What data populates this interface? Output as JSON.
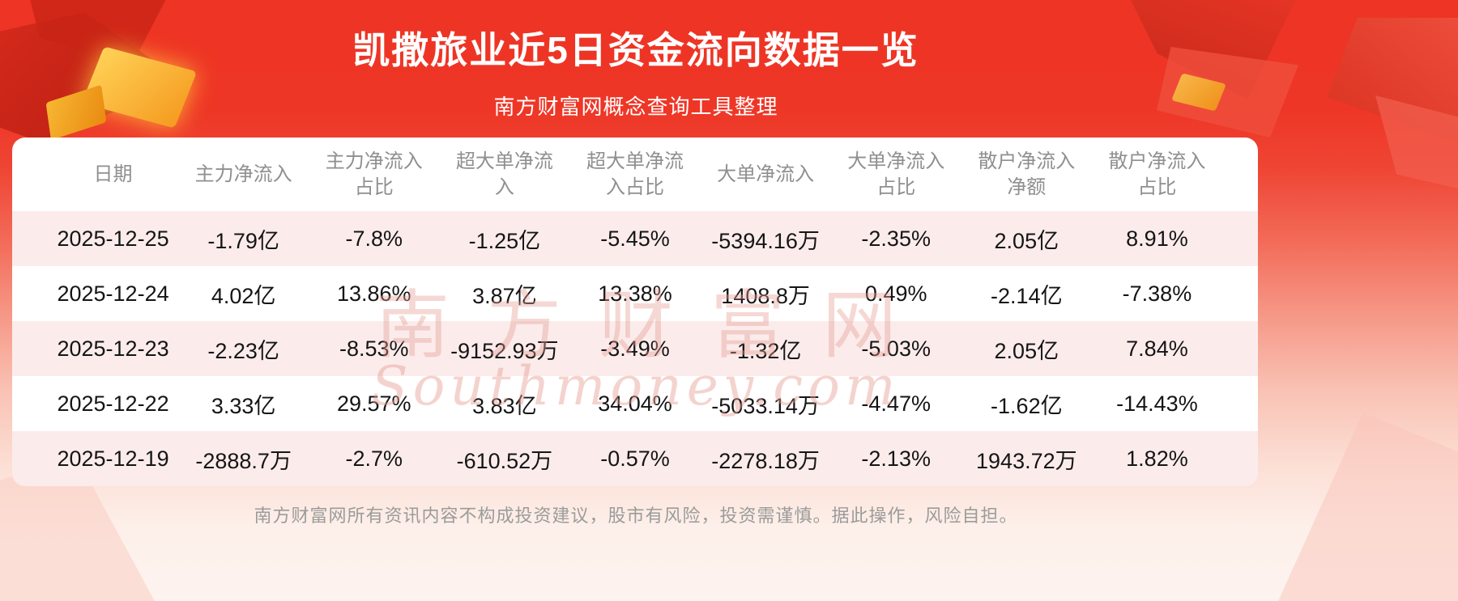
{
  "page": {
    "title": "凯撒旅业近5日资金流向数据一览",
    "subtitle": "南方财富网概念查询工具整理",
    "disclaimer": "南方财富网所有资讯内容不构成投资建议，股市有风险，投资需谨慎。据此操作，风险自担。",
    "watermark_cn": "南方财富网",
    "watermark_en": "Southmoney.com"
  },
  "colors": {
    "background_top_red": "#ee3424",
    "background_bottom_pink": "#fdf3ef",
    "title_text": "#ffffff",
    "header_text": "#8f8f8f",
    "cell_text": "#151515",
    "stripe_pink": "#fbeceb",
    "stripe_white": "#ffffff",
    "disclaimer_text": "#9b9b9b",
    "gold_decoration": "#f59b20",
    "watermark": "#e79e93"
  },
  "chart_data": {
    "type": "table",
    "title": "凯撒旅业近5日资金流向数据一览",
    "columns": [
      "日期",
      "主力净流入",
      "主力净流入占比",
      "超大单净流入",
      "超大单净流入占比",
      "大单净流入",
      "大单净流入占比",
      "散户净流入净额",
      "散户净流入占比"
    ],
    "rows": [
      [
        "2025-12-25",
        "-1.79亿",
        "-7.8%",
        "-1.25亿",
        "-5.45%",
        "-5394.16万",
        "-2.35%",
        "2.05亿",
        "8.91%"
      ],
      [
        "2025-12-24",
        "4.02亿",
        "13.86%",
        "3.87亿",
        "13.38%",
        "1408.8万",
        "0.49%",
        "-2.14亿",
        "-7.38%"
      ],
      [
        "2025-12-23",
        "-2.23亿",
        "-8.53%",
        "-9152.93万",
        "-3.49%",
        "-1.32亿",
        "-5.03%",
        "2.05亿",
        "7.84%"
      ],
      [
        "2025-12-22",
        "3.33亿",
        "29.57%",
        "3.83亿",
        "34.04%",
        "-5033.14万",
        "-4.47%",
        "-1.62亿",
        "-14.43%"
      ],
      [
        "2025-12-19",
        "-2888.7万",
        "-2.7%",
        "-610.52万",
        "-0.57%",
        "-2278.18万",
        "-2.13%",
        "1943.72万",
        "1.82%"
      ]
    ],
    "layout": {
      "striped_rows": true,
      "first_data_row_striped": true,
      "header_lines_wrap": true
    }
  }
}
